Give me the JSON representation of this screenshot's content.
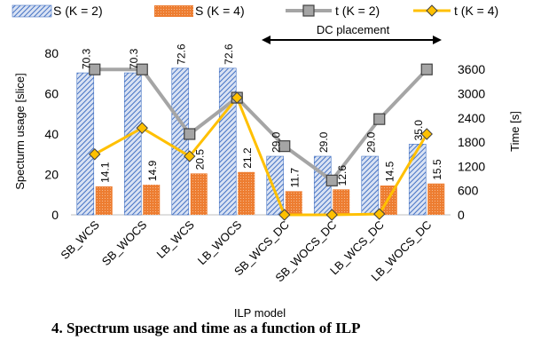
{
  "chart_data": {
    "type": "bar",
    "categories": [
      "SB_WCS",
      "SB_WOCS",
      "LB_WCS",
      "LB_WOCS",
      "SB_WCS_DC",
      "SB_WOCS_DC",
      "LB_WCS_DC",
      "LB_WOCS_DC"
    ],
    "series": [
      {
        "name": "S (K = 2)",
        "kind": "bar",
        "axis": "left",
        "color": "#4472C4",
        "values": [
          70.3,
          70.3,
          72.6,
          72.6,
          29.0,
          29.0,
          29.0,
          35.0
        ],
        "labels": [
          "70.3",
          "70.3",
          "72.6",
          "72.6",
          "29.0",
          "29.0",
          "29.0",
          "35.0"
        ]
      },
      {
        "name": "S (K = 4)",
        "kind": "bar",
        "axis": "left",
        "color": "#ED7D31",
        "values": [
          14.1,
          14.9,
          20.5,
          21.2,
          11.7,
          12.6,
          14.5,
          15.5
        ],
        "labels": [
          "14.1",
          "14.9",
          "20.5",
          "21.2",
          "11.7",
          "12.6",
          "14.5",
          "15.5"
        ]
      },
      {
        "name": "t (K = 2)",
        "kind": "line",
        "axis": "right",
        "color": "#A5A5A5",
        "values": [
          3600,
          3600,
          2000,
          2900,
          1700,
          850,
          2370,
          3600
        ]
      },
      {
        "name": "t (K = 4)",
        "kind": "line",
        "axis": "right",
        "color": "#FFC000",
        "values": [
          1500,
          2150,
          1450,
          2900,
          0,
          0,
          20,
          2000
        ]
      }
    ],
    "xlabel": "ILP model",
    "ylabel": "Specturm usage [slice]",
    "y2label": "Time [s]",
    "ylim": [
      0,
      80
    ],
    "yticks": [
      "0",
      "20",
      "40",
      "60",
      "80"
    ],
    "y2lim": [
      0,
      4000
    ],
    "y2ticks": [
      "0",
      "600",
      "1200",
      "1800",
      "2400",
      "3000",
      "3600"
    ],
    "annotation": "DC placement",
    "legend_position": "top",
    "grid": false
  },
  "caption": "4. Spectrum usage and time as a function of ILP"
}
